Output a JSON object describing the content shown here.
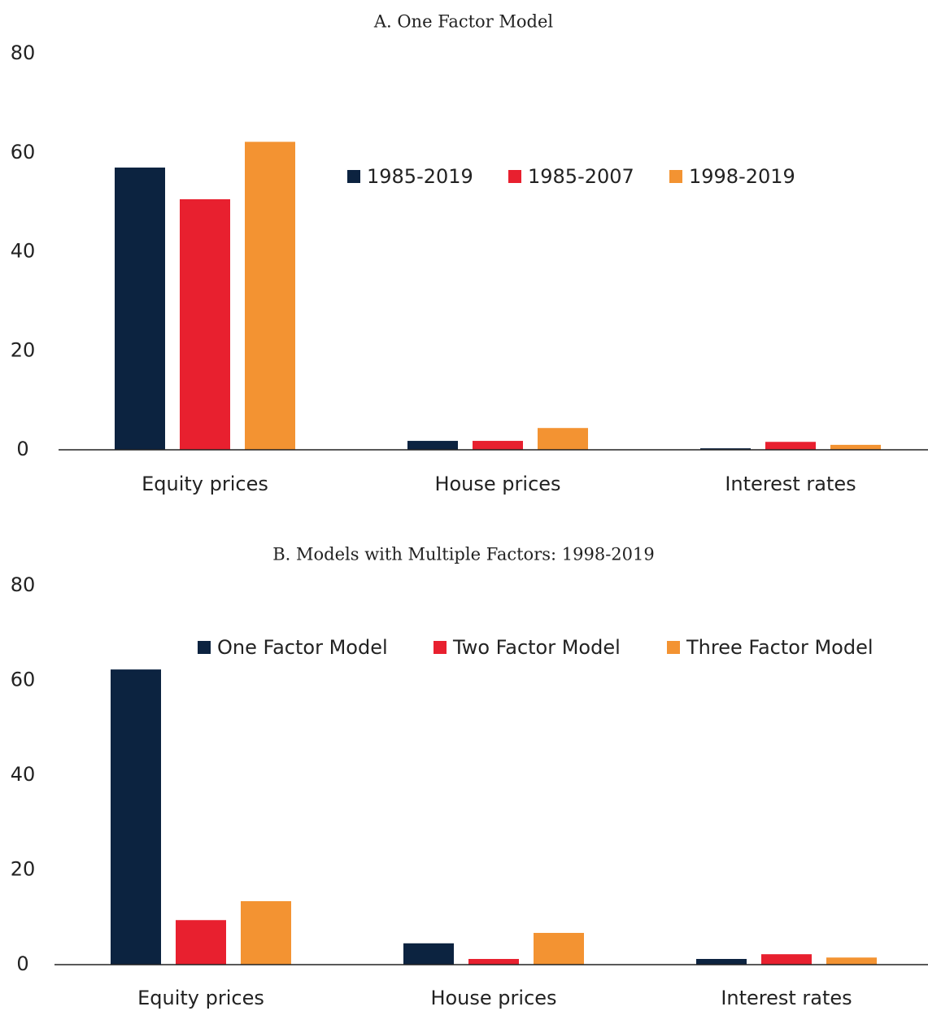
{
  "chart_data": [
    {
      "type": "bar",
      "title": "A. One Factor Model",
      "categories": [
        "Equity prices",
        "House prices",
        "Interest rates"
      ],
      "series": [
        {
          "name": "1985-2019",
          "color": "#0c2340",
          "values": [
            57.0,
            1.8,
            0.3
          ]
        },
        {
          "name": "1985-2007",
          "color": "#e8202f",
          "values": [
            50.6,
            1.8,
            1.6
          ]
        },
        {
          "name": "1998-2019",
          "color": "#f39332",
          "values": [
            62.2,
            4.4,
            1.0
          ]
        }
      ],
      "ylim": [
        0,
        80
      ],
      "yticks": [
        0,
        20,
        40,
        60,
        80
      ],
      "grid": false,
      "legend": "top-right"
    },
    {
      "type": "bar",
      "title": "B. Models with Multiple Factors: 1998-2019",
      "categories": [
        "Equity prices",
        "House prices",
        "Interest rates"
      ],
      "series": [
        {
          "name": "One Factor Model",
          "color": "#0c2340",
          "values": [
            62.3,
            4.5,
            1.2
          ]
        },
        {
          "name": "Two Factor Model",
          "color": "#e8202f",
          "values": [
            9.4,
            1.2,
            2.2
          ]
        },
        {
          "name": "Three Factor Model",
          "color": "#f39332",
          "values": [
            13.4,
            6.7,
            1.5
          ]
        }
      ],
      "ylim": [
        0,
        80
      ],
      "yticks": [
        0,
        20,
        40,
        60,
        80
      ],
      "grid": false,
      "legend": "top-right"
    }
  ]
}
